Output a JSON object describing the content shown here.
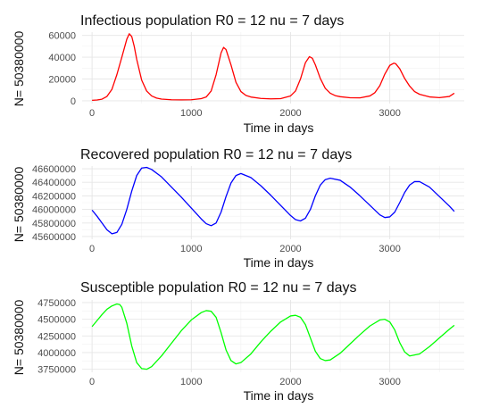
{
  "chart_data": [
    {
      "type": "line",
      "title": "Infectious population R0 = 12 nu = 7 days",
      "xlabel": "Time in days",
      "ylabel": "N= 50380000",
      "xlim": [
        -100,
        3750
      ],
      "ylim": [
        -2500,
        63000
      ],
      "xticks": [
        0,
        1000,
        2000,
        3000
      ],
      "xtick_labels": [
        "0",
        "1000",
        "2000",
        "3000"
      ],
      "yticks": [
        0,
        20000,
        40000,
        60000
      ],
      "ytick_labels": [
        "0",
        "20000",
        "40000",
        "60000"
      ],
      "grid": true,
      "legend": "none",
      "color": "#ff0000",
      "series": [
        {
          "x": [
            0,
            50,
            100,
            150,
            200,
            250,
            300,
            350,
            375,
            400,
            425,
            450,
            500,
            550,
            600,
            650,
            700,
            800,
            900,
            1000,
            1100,
            1150,
            1200,
            1250,
            1300,
            1325,
            1350,
            1400,
            1450,
            1500,
            1550,
            1600,
            1700,
            1800,
            1900,
            2000,
            2050,
            2100,
            2150,
            2190,
            2220,
            2250,
            2300,
            2350,
            2400,
            2450,
            2500,
            2600,
            2700,
            2800,
            2850,
            2900,
            2950,
            3000,
            3040,
            3060,
            3100,
            3150,
            3200,
            3250,
            3300,
            3400,
            3500,
            3600,
            3650
          ],
          "y": [
            500,
            800,
            1500,
            4000,
            10500,
            24000,
            40000,
            56500,
            61500,
            59000,
            50000,
            38000,
            19000,
            9000,
            4500,
            2500,
            1600,
            1000,
            900,
            1000,
            2000,
            3500,
            9000,
            24000,
            44000,
            49000,
            47000,
            33000,
            17000,
            8500,
            5000,
            3500,
            2200,
            1800,
            2000,
            4500,
            9000,
            20000,
            35000,
            40500,
            39000,
            33000,
            20500,
            11500,
            7000,
            4800,
            3800,
            2800,
            2700,
            4500,
            7500,
            14000,
            24500,
            32500,
            34500,
            34000,
            29500,
            20500,
            13500,
            8500,
            6000,
            3600,
            2900,
            4000,
            7000
          ]
        }
      ]
    },
    {
      "type": "line",
      "title": "Recovered population R0 = 12 nu = 7 days",
      "xlabel": "Time in days",
      "ylabel": "N= 50380000",
      "xlim": [
        -100,
        3750
      ],
      "ylim": [
        45560000,
        46640000
      ],
      "xticks": [
        0,
        1000,
        2000,
        3000
      ],
      "xtick_labels": [
        "0",
        "1000",
        "2000",
        "3000"
      ],
      "yticks": [
        45600000,
        45800000,
        46000000,
        46200000,
        46400000,
        46600000
      ],
      "ytick_labels": [
        "45600000",
        "45800000",
        "46000000",
        "46200000",
        "46400000",
        "46600000"
      ],
      "grid": true,
      "legend": "none",
      "color": "#0000ff",
      "series": [
        {
          "x": [
            0,
            50,
            100,
            150,
            200,
            250,
            300,
            350,
            400,
            450,
            500,
            550,
            600,
            700,
            800,
            900,
            1000,
            1100,
            1150,
            1200,
            1250,
            1300,
            1350,
            1400,
            1450,
            1500,
            1600,
            1700,
            1800,
            1900,
            2000,
            2050,
            2100,
            2150,
            2200,
            2250,
            2300,
            2350,
            2400,
            2500,
            2600,
            2700,
            2800,
            2900,
            2950,
            3000,
            3050,
            3100,
            3150,
            3200,
            3250,
            3300,
            3400,
            3500,
            3600,
            3650
          ],
          "y": [
            45990000,
            45900000,
            45800000,
            45700000,
            45640000,
            45660000,
            45780000,
            46000000,
            46270000,
            46500000,
            46610000,
            46620000,
            46590000,
            46480000,
            46330000,
            46180000,
            46020000,
            45860000,
            45790000,
            45760000,
            45800000,
            45960000,
            46190000,
            46390000,
            46500000,
            46530000,
            46470000,
            46350000,
            46210000,
            46060000,
            45910000,
            45850000,
            45830000,
            45870000,
            46000000,
            46200000,
            46360000,
            46440000,
            46460000,
            46430000,
            46330000,
            46200000,
            46060000,
            45920000,
            45880000,
            45890000,
            45960000,
            46100000,
            46250000,
            46360000,
            46410000,
            46410000,
            46330000,
            46190000,
            46050000,
            45970000
          ]
        }
      ]
    },
    {
      "type": "line",
      "title": "Susceptible population R0 = 12 nu = 7 days",
      "xlabel": "Time in days",
      "ylabel": "N= 50380000",
      "xlim": [
        -100,
        3750
      ],
      "ylim": [
        3705000,
        4790000
      ],
      "xticks": [
        0,
        1000,
        2000,
        3000
      ],
      "xtick_labels": [
        "0",
        "1000",
        "2000",
        "3000"
      ],
      "yticks": [
        3750000,
        4000000,
        4250000,
        4500000,
        4750000
      ],
      "ytick_labels": [
        "3750000",
        "4000000",
        "4250000",
        "4500000",
        "4750000"
      ],
      "grid": true,
      "legend": "none",
      "color": "#00ff00",
      "series": [
        {
          "x": [
            0,
            50,
            100,
            150,
            200,
            250,
            280,
            300,
            350,
            400,
            450,
            500,
            550,
            600,
            700,
            800,
            900,
            1000,
            1100,
            1150,
            1200,
            1250,
            1300,
            1350,
            1400,
            1450,
            1500,
            1600,
            1700,
            1800,
            1900,
            2000,
            2050,
            2100,
            2150,
            2200,
            2250,
            2300,
            2350,
            2400,
            2500,
            2600,
            2700,
            2800,
            2900,
            2950,
            3000,
            3050,
            3100,
            3150,
            3200,
            3300,
            3400,
            3500,
            3600,
            3650
          ],
          "y": [
            4390000,
            4480000,
            4570000,
            4650000,
            4700000,
            4730000,
            4720000,
            4680000,
            4440000,
            4100000,
            3850000,
            3760000,
            3750000,
            3790000,
            3950000,
            4140000,
            4330000,
            4490000,
            4600000,
            4630000,
            4620000,
            4530000,
            4300000,
            4040000,
            3880000,
            3830000,
            3850000,
            3980000,
            4160000,
            4320000,
            4460000,
            4550000,
            4560000,
            4530000,
            4420000,
            4220000,
            4020000,
            3910000,
            3880000,
            3890000,
            3990000,
            4130000,
            4270000,
            4400000,
            4490000,
            4500000,
            4460000,
            4340000,
            4150000,
            4010000,
            3950000,
            3980000,
            4090000,
            4220000,
            4350000,
            4410000
          ]
        }
      ]
    }
  ]
}
